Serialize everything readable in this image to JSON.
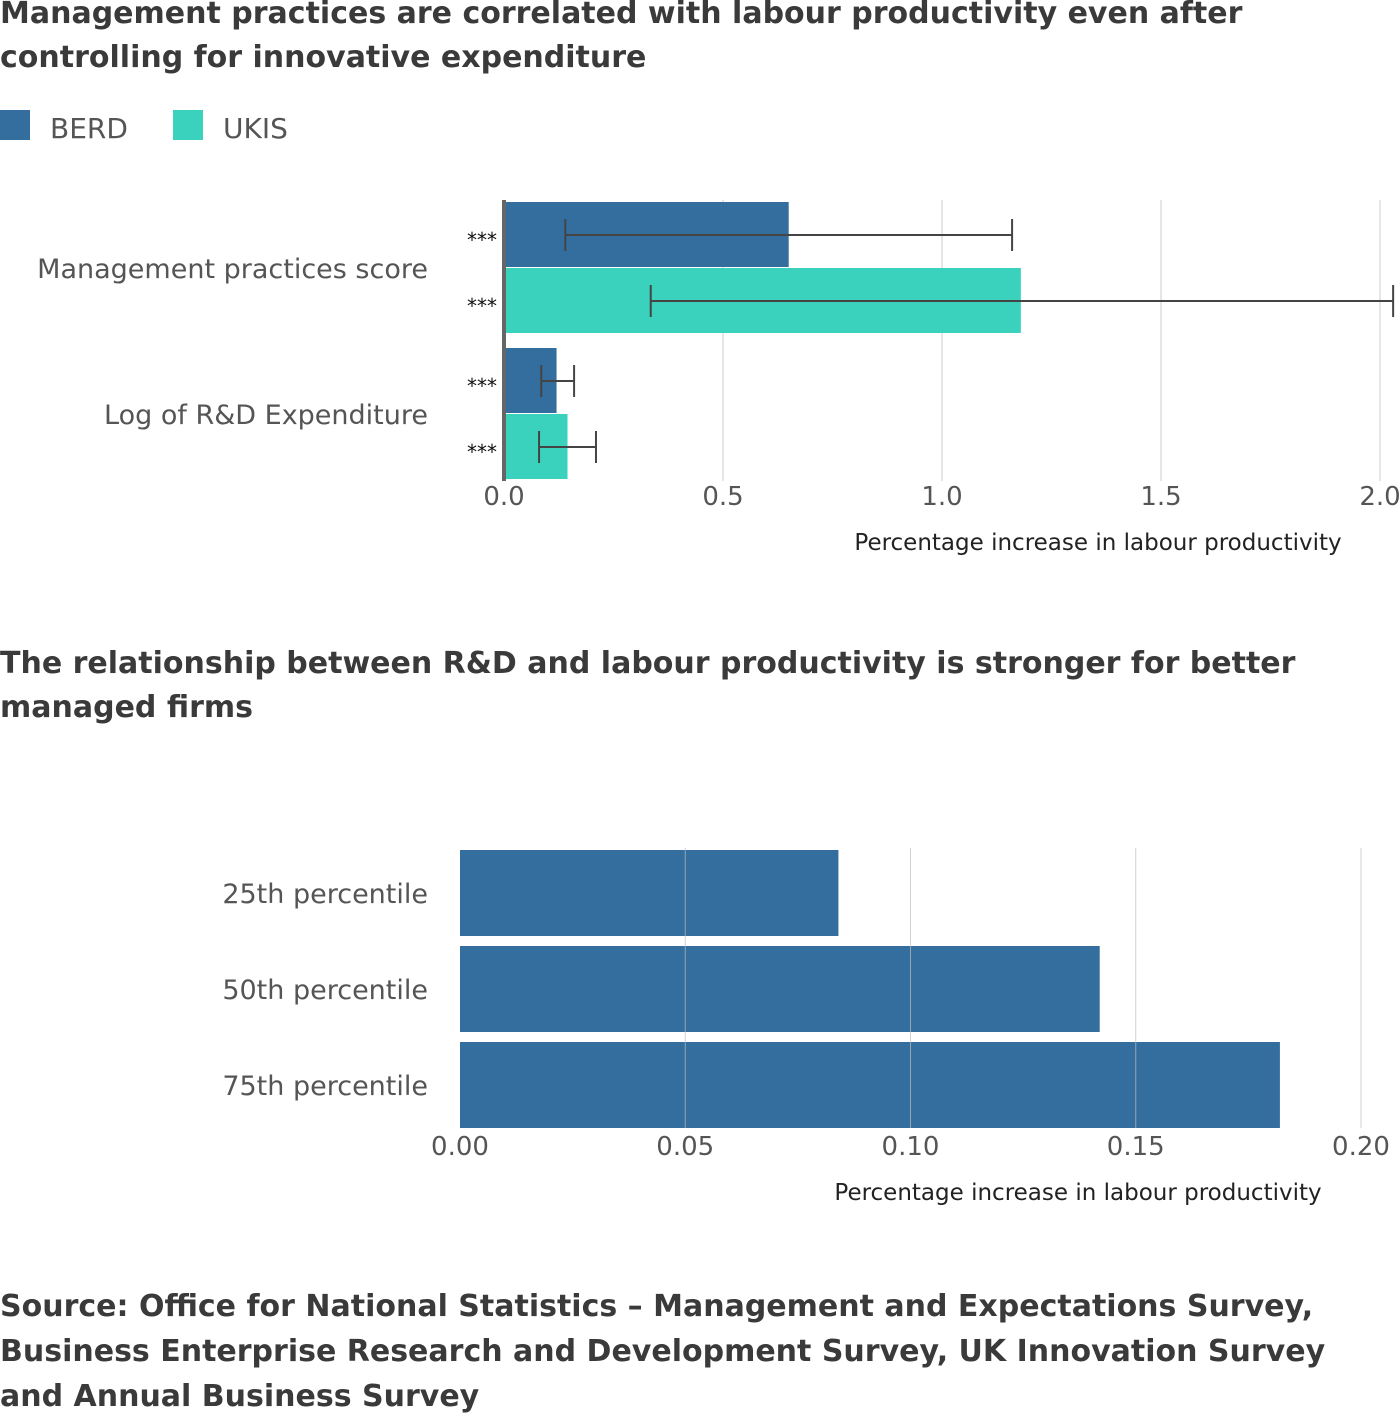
{
  "chart1": {
    "title": "Management practices are correlated with labour productivity even after controlling for innovative expenditure",
    "legend": [
      {
        "label": "BERD",
        "color": "#336e9e"
      },
      {
        "label": "UKIS",
        "color": "#3ad1bd"
      }
    ]
  },
  "chart2": {
    "title": "The relationship between R&D and labour productivity is stronger for better managed firms"
  },
  "source": "Source: Office for National Statistics – Management and Expectations Survey, Business Enterprise Research and Development Survey, UK Innovation Survey and Annual Business Survey",
  "chart_data": [
    {
      "type": "bar",
      "orientation": "horizontal",
      "title": "Management practices are correlated with labour productivity even after controlling for innovative expenditure",
      "categories": [
        "Management practices score",
        "Log of R&D Expenditure"
      ],
      "series": [
        {
          "name": "BERD",
          "color": "#336e9e",
          "values": [
            0.65,
            0.12
          ],
          "error_low": [
            0.14,
            0.085
          ],
          "error_high": [
            1.16,
            0.16
          ],
          "significance": [
            "***",
            "***"
          ]
        },
        {
          "name": "UKIS",
          "color": "#3ad1bd",
          "values": [
            1.18,
            0.145
          ],
          "error_low": [
            0.335,
            0.08
          ],
          "error_high": [
            2.03,
            0.21
          ],
          "significance": [
            "***",
            "***"
          ]
        }
      ],
      "xlabel": "Percentage increase in labour productivity",
      "xlim": [
        0,
        2.0
      ],
      "xticks": [
        "0.0",
        "0.5",
        "1.0",
        "1.5",
        "2.0"
      ],
      "grid": true,
      "legend_position": "top-left"
    },
    {
      "type": "bar",
      "orientation": "horizontal",
      "title": "The relationship between R&D and labour productivity is stronger for better managed firms",
      "categories": [
        "25th percentile",
        "50th percentile",
        "75th percentile"
      ],
      "values": [
        0.084,
        0.142,
        0.182
      ],
      "color": "#336e9e",
      "xlabel": "Percentage increase in labour productivity",
      "xlim": [
        0,
        0.2
      ],
      "xticks": [
        "0.00",
        "0.05",
        "0.10",
        "0.15",
        "0.20"
      ],
      "grid": true
    }
  ]
}
